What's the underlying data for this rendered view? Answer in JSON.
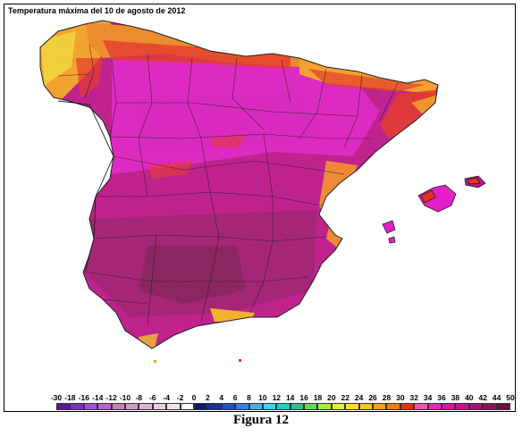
{
  "title": "Temperatura máxima del 10 de agosto de 2012",
  "caption": "Figura 12",
  "legend": {
    "ticks": [
      "-30",
      "-18",
      "-16",
      "-14",
      "-12",
      "-10",
      "-8",
      "-6",
      "-4",
      "-2",
      "0",
      "2",
      "4",
      "6",
      "8",
      "10",
      "12",
      "14",
      "16",
      "18",
      "20",
      "22",
      "24",
      "26",
      "28",
      "30",
      "32",
      "34",
      "36",
      "38",
      "40",
      "42",
      "44",
      "50"
    ],
    "colors": [
      "#5a189a",
      "#7b2cbf",
      "#9d4edd",
      "#b565c9",
      "#c77dbf",
      "#d49ac8",
      "#dcb2d6",
      "#e6cde2",
      "#efe3ee",
      "#ffffff",
      "#0a1a6b",
      "#1530a0",
      "#2050d0",
      "#3a7af0",
      "#40b0f5",
      "#30d8f0",
      "#20d0c0",
      "#30c090",
      "#60d860",
      "#a0f040",
      "#e0f030",
      "#f8e020",
      "#f8c818",
      "#f8a010",
      "#f87808",
      "#e83010",
      "#ff50b0",
      "#f020c0",
      "#e010a0",
      "#c8108a",
      "#a81078",
      "#8a1060",
      "#6a1040"
    ],
    "units": ""
  },
  "colors": {
    "hot_base": "#c0148a",
    "very_hot": "#8a1860",
    "warm": "#e81ad0",
    "mild_orange": "#f89020",
    "mild_yellow": "#f8c020",
    "red": "#e83018",
    "sea": "#ffffff",
    "borders": "#202020"
  }
}
